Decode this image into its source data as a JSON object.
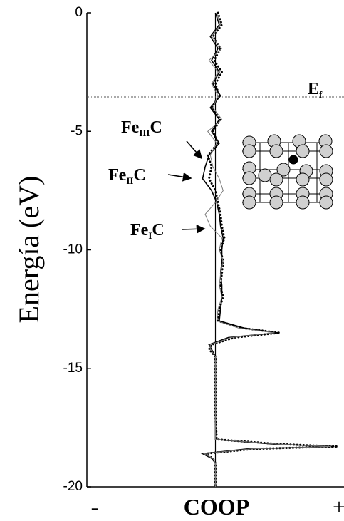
{
  "chart_data": {
    "type": "line",
    "y_label": "Energía (eV)",
    "x_label": "COOP",
    "x_end_labels": [
      "-",
      "+"
    ],
    "ylim": [
      -20,
      0
    ],
    "yticks": [
      0,
      -5,
      -10,
      -15,
      -20
    ],
    "xlim": [
      -1,
      1
    ],
    "fermi": {
      "value": -3.55,
      "label": [
        "E",
        "f"
      ],
      "color": "#555555"
    },
    "energy": [
      0,
      -0.5,
      -1,
      -1.5,
      -2,
      -2.5,
      -3,
      -3.5,
      -4,
      -4.5,
      -5,
      -5.5,
      -6,
      -6.5,
      -7,
      -7.5,
      -8,
      -8.5,
      -9,
      -9.5,
      -10,
      -10.5,
      -11,
      -11.5,
      -12,
      -12.5,
      -13,
      -13.3,
      -13.5,
      -13.7,
      -14,
      -14.2,
      -14.5,
      -15,
      -16,
      -17,
      -18,
      -18.2,
      -18.3,
      -18.4,
      -18.6,
      -18.8,
      -19,
      -20
    ],
    "series": [
      {
        "label": [
          "Fe",
          "I",
          "C"
        ],
        "color": "#000000",
        "style": "dotted",
        "values": [
          0.02,
          0.05,
          -0.02,
          0.04,
          -0.01,
          0.05,
          0.0,
          0.03,
          -0.03,
          0.04,
          -0.02,
          0.02,
          -0.06,
          -0.03,
          -0.05,
          0.0,
          0.02,
          0.04,
          0.05,
          0.07,
          0.04,
          0.06,
          0.05,
          0.04,
          0.06,
          0.03,
          0.02,
          0.2,
          0.5,
          0.15,
          -0.03,
          -0.05,
          0.0,
          0.0,
          0.0,
          0.0,
          0.01,
          0.5,
          0.95,
          0.3,
          -0.08,
          -0.02,
          0.0,
          0.0
        ]
      },
      {
        "label": [
          "Fe",
          "II",
          "C"
        ],
        "color": "#000000",
        "style": "solid",
        "values": [
          0.0,
          0.03,
          -0.04,
          0.02,
          -0.03,
          0.03,
          -0.02,
          0.04,
          -0.04,
          0.03,
          -0.03,
          0.03,
          -0.05,
          -0.08,
          -0.1,
          -0.03,
          0.01,
          0.03,
          0.04,
          0.06,
          0.05,
          0.05,
          0.04,
          0.05,
          0.05,
          0.04,
          0.03,
          0.22,
          0.48,
          0.1,
          -0.05,
          -0.03,
          0.0,
          0.0,
          0.0,
          0.0,
          0.0,
          0.45,
          0.92,
          0.25,
          -0.1,
          -0.03,
          0.0,
          0.0
        ]
      },
      {
        "label": [
          "Fe",
          "III",
          "C"
        ],
        "color": "#777777",
        "style": "thin",
        "values": [
          0.01,
          0.04,
          -0.03,
          0.05,
          -0.05,
          0.02,
          -0.03,
          0.02,
          -0.02,
          0.05,
          -0.06,
          0.01,
          -0.04,
          -0.02,
          0.03,
          0.06,
          0.0,
          -0.08,
          -0.04,
          0.05,
          0.03,
          0.06,
          0.04,
          0.03,
          0.05,
          0.02,
          0.01,
          0.18,
          0.46,
          0.12,
          -0.04,
          -0.04,
          0.0,
          0.0,
          0.0,
          0.0,
          0.0,
          0.48,
          0.9,
          0.28,
          -0.09,
          -0.02,
          0.0,
          0.0
        ]
      }
    ]
  }
}
